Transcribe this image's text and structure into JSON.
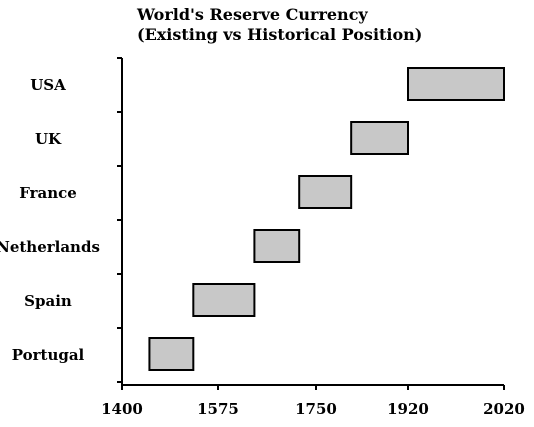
{
  "chart_data": {
    "type": "bar",
    "orientation": "horizontal-range",
    "title": "World's Reserve Currency",
    "subtitle": "(Existing vs Historical Position)",
    "xlabel": "",
    "ylabel": "",
    "xlim": [
      1400,
      2020
    ],
    "x_ticks": [
      1400,
      1575,
      1750,
      1920,
      2020
    ],
    "grid": false,
    "categories": [
      "USA",
      "UK",
      "France",
      "Netherlands",
      "Spain",
      "Portugal"
    ],
    "series": [
      {
        "ranges": [
          [
            1920,
            2020
          ],
          [
            1815,
            1920
          ],
          [
            1720,
            1815
          ],
          [
            1640,
            1720
          ],
          [
            1530,
            1640
          ],
          [
            1450,
            1530
          ]
        ]
      }
    ],
    "colors": {
      "bar_fill": "#c8c8c8",
      "bar_stroke": "#000000",
      "axis": "#000000"
    }
  }
}
